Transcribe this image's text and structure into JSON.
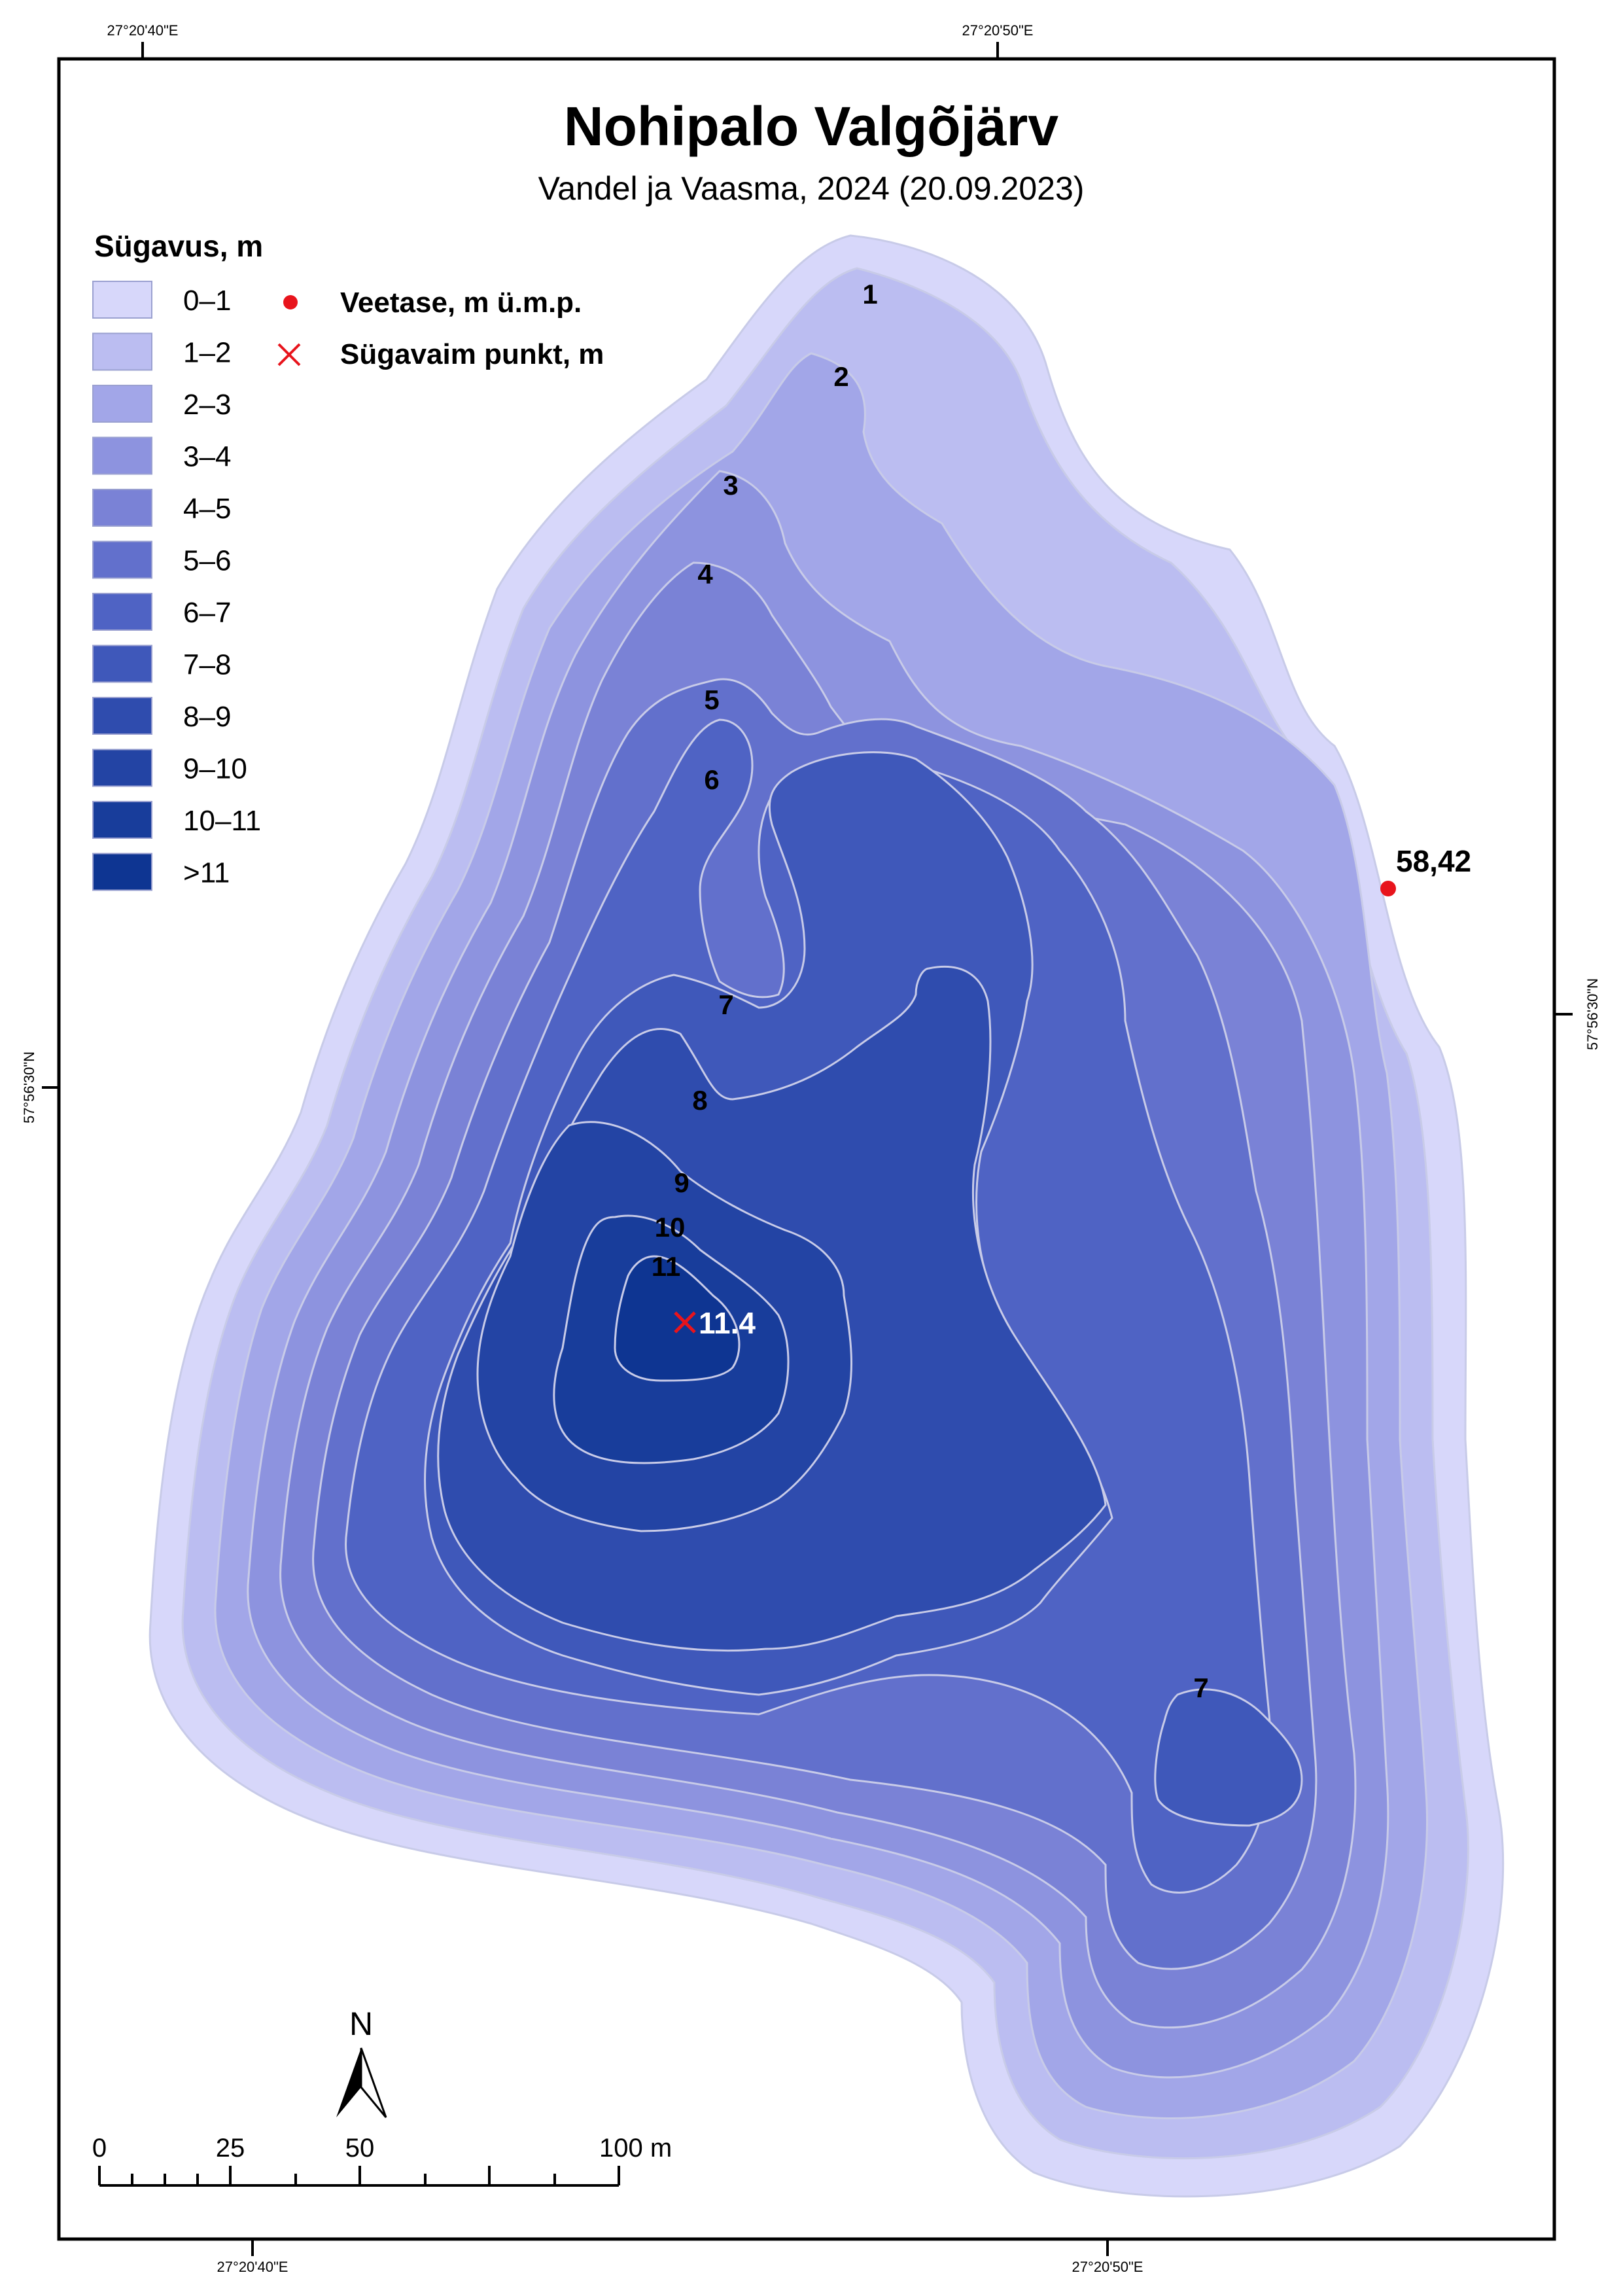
{
  "map": {
    "title": "Nohipalo Valgõjärv",
    "subtitle": "Vandel ja Vaasma, 2024 (20.09.2023)"
  },
  "graticule": {
    "top_left": "27°20'40\"E",
    "top_right": "27°20'50\"E",
    "bottom_left": "27°20'40\"E",
    "bottom_right": "27°20'50\"E",
    "left": "57°56'30\"N",
    "right": "57°56'30\"N"
  },
  "legend": {
    "heading": "Sügavus, m",
    "classes": [
      {
        "label": "0–1",
        "color": "#d7d7fa"
      },
      {
        "label": "1–2",
        "color": "#bbbdf1"
      },
      {
        "label": "2–3",
        "color": "#a2a6e8"
      },
      {
        "label": "3–4",
        "color": "#8d93df"
      },
      {
        "label": "4–5",
        "color": "#7a82d6"
      },
      {
        "label": "5–6",
        "color": "#6270cc"
      },
      {
        "label": "6–7",
        "color": "#4f63c4"
      },
      {
        "label": "7–8",
        "color": "#3f58ba"
      },
      {
        "label": "8–9",
        "color": "#2f4cae"
      },
      {
        "label": "9–10",
        "color": "#2344a4"
      },
      {
        "label": "10–11",
        "color": "#183d9b"
      },
      {
        "label": ">11",
        "color": "#0e3592"
      }
    ],
    "water_level": {
      "label": "Veetase, m ü.m.p.",
      "icon": "red-dot-icon",
      "color": "#e8141c"
    },
    "deepest_point": {
      "label": "Sügavaim punkt, m",
      "icon": "red-x-icon",
      "color": "#e8141c"
    }
  },
  "contour_labels": {
    "c1": "1",
    "c2": "2",
    "c3": "3",
    "c4": "4",
    "c5": "5",
    "c6": "6",
    "c7": "7",
    "c8": "8",
    "c9": "9",
    "c10": "10",
    "c11": "11",
    "c7b": "7"
  },
  "water_level_value": "58,42",
  "deepest_point_value": "11.4",
  "north_arrow": {
    "label": "N"
  },
  "scale_bar": {
    "labels": [
      "0",
      "25",
      "50",
      "100 m"
    ]
  }
}
